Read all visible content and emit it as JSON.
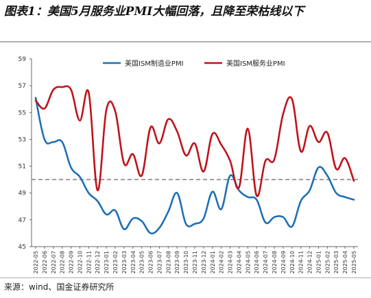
{
  "figure": {
    "title": "图表1：美国5月服务业PMI大幅回落，且降至荣枯线以下",
    "source": "来源：wind、国金证券研究所"
  },
  "colors": {
    "manufacturing": "#1f6fb4",
    "services": "#c0121a",
    "reference": "#888888"
  },
  "chart_data": {
    "type": "line",
    "title": "",
    "xlabel": "",
    "ylabel": "",
    "ylim": [
      45,
      59
    ],
    "yticks": [
      45,
      47,
      49,
      51,
      53,
      55,
      57,
      59
    ],
    "reference_line": {
      "y": 50,
      "style": "dashed"
    },
    "legend_position": "top",
    "categories": [
      "2022-05",
      "2022-06",
      "2022-07",
      "2022-08",
      "2022-09",
      "2022-10",
      "2022-11",
      "2022-12",
      "2023-01",
      "2023-02",
      "2023-03",
      "2023-04",
      "2023-05",
      "2023-06",
      "2023-07",
      "2023-08",
      "2023-09",
      "2023-10",
      "2023-11",
      "2023-12",
      "2024-01",
      "2024-02",
      "2024-03",
      "2024-04",
      "2024-05",
      "2024-06",
      "2024-07",
      "2024-08",
      "2024-09",
      "2024-10",
      "2024-11",
      "2024-12",
      "2025-01",
      "2025-02",
      "2025-03",
      "2025-04",
      "2025-05"
    ],
    "series": [
      {
        "name": "美国ISM制造业PMI",
        "color": "#1f6fb4",
        "values": [
          56.1,
          53.0,
          52.8,
          52.8,
          50.9,
          50.2,
          49.0,
          48.4,
          47.4,
          47.7,
          46.3,
          47.1,
          46.9,
          46.0,
          46.4,
          47.6,
          49.0,
          46.7,
          46.7,
          47.1,
          49.1,
          47.8,
          50.3,
          49.2,
          48.7,
          48.5,
          46.8,
          47.2,
          47.2,
          46.5,
          48.4,
          49.2,
          50.9,
          50.3,
          49.0,
          48.7,
          48.5
        ]
      },
      {
        "name": "美国ISM服务业PMI",
        "color": "#c0121a",
        "values": [
          55.9,
          55.3,
          56.7,
          56.9,
          56.7,
          54.4,
          56.5,
          49.2,
          55.2,
          55.1,
          51.2,
          51.9,
          50.3,
          53.9,
          52.7,
          54.5,
          53.6,
          51.8,
          52.7,
          50.6,
          53.4,
          52.6,
          51.4,
          49.4,
          53.8,
          48.8,
          51.4,
          51.5,
          54.9,
          56.0,
          52.1,
          54.0,
          52.8,
          53.5,
          50.8,
          51.6,
          49.9
        ]
      }
    ]
  }
}
